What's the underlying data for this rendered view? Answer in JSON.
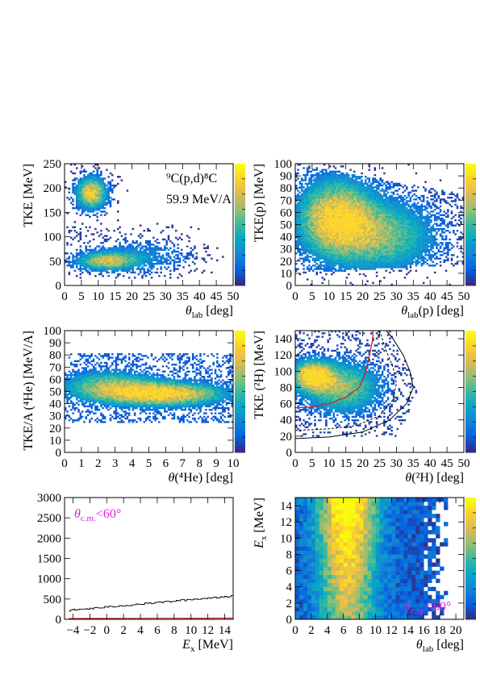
{
  "figure": {
    "colors": {
      "hist_line": "#000000",
      "cut_line": "#cc2222",
      "annotation": "#e020e0"
    },
    "palette": [
      "#352a87",
      "#0363e1",
      "#1485d4",
      "#06a7c6",
      "#38b99e",
      "#92bf73",
      "#d9ba56",
      "#fcce2e",
      "#f9fb0e"
    ]
  },
  "chart_data": [
    {
      "id": "p1",
      "type": "heatmap",
      "xlabel_main": "θ",
      "xlabel_sub": "lab",
      "xlabel_tail": " [deg]",
      "ylabel": "TKE [MeV]",
      "xlim": [
        0,
        50
      ],
      "ylim": [
        0,
        250
      ],
      "xticks": [
        "0",
        "5",
        "10",
        "15",
        "20",
        "25",
        "30",
        "35",
        "40",
        "45",
        "50"
      ],
      "yticks": [
        "0",
        "50",
        "100",
        "150",
        "200",
        "250"
      ],
      "annotation": [
        "⁹C(p,d)⁸C",
        "59.9 MeV/A"
      ],
      "blobs": [
        {
          "x": 8,
          "y": 190,
          "sx": 3,
          "sy": 22,
          "w": 1.0
        },
        {
          "x": 12,
          "y": 50,
          "sx": 6,
          "sy": 12,
          "w": 0.7
        },
        {
          "x": 22,
          "y": 60,
          "sx": 10,
          "sy": 22,
          "w": 0.3
        }
      ]
    },
    {
      "id": "p2",
      "type": "heatmap",
      "xlabel_main": "θ",
      "xlabel_sub": "lab",
      "xlabel_tail": "(p) [deg]",
      "ylabel": "TKE(p) [MeV]",
      "xlim": [
        0,
        50
      ],
      "ylim": [
        0,
        100
      ],
      "xticks": [
        "0",
        "5",
        "10",
        "15",
        "20",
        "25",
        "30",
        "35",
        "40",
        "45",
        "50"
      ],
      "yticks": [
        "0",
        "10",
        "20",
        "30",
        "40",
        "50",
        "60",
        "70",
        "80",
        "90",
        "100"
      ],
      "blobs": [
        {
          "x": 12,
          "y": 55,
          "sx": 8,
          "sy": 22,
          "w": 1.0
        },
        {
          "x": 28,
          "y": 40,
          "sx": 10,
          "sy": 20,
          "w": 0.6
        }
      ]
    },
    {
      "id": "p3",
      "type": "heatmap",
      "xlabel_main": "θ",
      "xlabel_tail": "(⁴He) [deg]",
      "ylabel": "TKE/A (⁴He) [MeV/A]",
      "xlim": [
        0,
        10
      ],
      "ylim": [
        0,
        100
      ],
      "xticks": [
        "0",
        "1",
        "2",
        "3",
        "4",
        "5",
        "6",
        "7",
        "8",
        "9",
        "10"
      ],
      "yticks": [
        "0",
        "10",
        "20",
        "30",
        "40",
        "50",
        "60",
        "70",
        "80",
        "90",
        "100"
      ],
      "blobs": [
        {
          "x": 6,
          "y": 48,
          "sx": 2.5,
          "sy": 7,
          "w": 1.0
        },
        {
          "x": 2.5,
          "y": 55,
          "sx": 2,
          "sy": 9,
          "w": 0.6
        }
      ]
    },
    {
      "id": "p4",
      "type": "heatmap",
      "xlabel_main": "θ",
      "xlabel_tail": "(²H) [deg]",
      "ylabel": "TKE (²H) [MeV]",
      "xlim": [
        0,
        50
      ],
      "ylim": [
        0,
        150
      ],
      "xticks": [
        "0",
        "5",
        "10",
        "15",
        "20",
        "25",
        "30",
        "35",
        "40",
        "45",
        "50"
      ],
      "yticks": [
        "0",
        "20",
        "40",
        "60",
        "80",
        "100",
        "120",
        "140"
      ],
      "blobs": [
        {
          "x": 5,
          "y": 95,
          "sx": 4,
          "sy": 12,
          "w": 1.0
        },
        {
          "x": 14,
          "y": 80,
          "sx": 8,
          "sy": 22,
          "w": 0.7
        }
      ],
      "curves": {
        "black_solid": [
          [
            0,
            17
          ],
          [
            10,
            19
          ],
          [
            20,
            25
          ],
          [
            28,
            40
          ],
          [
            33,
            60
          ],
          [
            35,
            80
          ],
          [
            34,
            100
          ],
          [
            32,
            120
          ],
          [
            29,
            140
          ],
          [
            27,
            150
          ]
        ],
        "black_dashed": [
          [
            0,
            27
          ],
          [
            10,
            29
          ],
          [
            18,
            33
          ],
          [
            25,
            45
          ],
          [
            29,
            65
          ],
          [
            30,
            85
          ],
          [
            29,
            105
          ],
          [
            27,
            125
          ],
          [
            25,
            150
          ]
        ],
        "red": [
          [
            0,
            55
          ],
          [
            5,
            56
          ],
          [
            10,
            60
          ],
          [
            15,
            68
          ],
          [
            19,
            80
          ],
          [
            21,
            100
          ],
          [
            22,
            120
          ],
          [
            23,
            140
          ],
          [
            23,
            150
          ]
        ]
      }
    },
    {
      "id": "p5",
      "type": "line",
      "xlabel_main": "E",
      "xlabel_sub": "x",
      "xlabel_tail": " [MeV]",
      "xlim": [
        -5,
        15
      ],
      "ylim": [
        0,
        3000
      ],
      "xticks": [
        "−4",
        "−2",
        "0",
        "2",
        "4",
        "6",
        "8",
        "10",
        "12",
        "14"
      ],
      "yticks": [
        "0",
        "500",
        "1000",
        "1500",
        "2000",
        "2500",
        "3000"
      ],
      "annotation_main": "θ",
      "annotation_sub": "c.m.",
      "annotation_tail": "<60°",
      "series": [
        {
          "values_from": -4.5,
          "values_to": 15,
          "start": 220,
          "end": 580
        },
        {
          "values_from": -4.5,
          "values_to": 15,
          "start": 20,
          "end": 30
        }
      ]
    },
    {
      "id": "p6",
      "type": "heatmap",
      "xlabel_main": "θ",
      "xlabel_sub": "lab",
      "xlabel_tail": " [deg]",
      "ylabel_main": "E",
      "ylabel_sub": "x",
      "ylabel_tail": " [MeV]",
      "xlim": [
        0,
        21
      ],
      "ylim": [
        0,
        15
      ],
      "xticks": [
        "0",
        "2",
        "4",
        "6",
        "8",
        "10",
        "12",
        "14",
        "16",
        "18",
        "20"
      ],
      "yticks": [
        "0",
        "2",
        "4",
        "6",
        "8",
        "10",
        "12",
        "14"
      ],
      "annotation_main": "θ",
      "annotation_sub": "c.m.",
      "annotation_tail": "<60°"
    }
  ]
}
